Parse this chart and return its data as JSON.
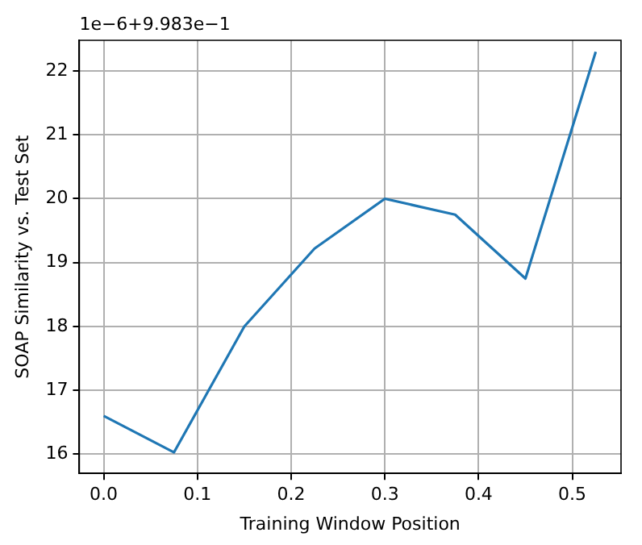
{
  "chart_data": {
    "type": "line",
    "xlabel": "Training Window Position",
    "ylabel": "SOAP Similarity vs. Test Set",
    "annotations": [
      "1e−6+9.983e−1"
    ],
    "x": [
      0,
      0.075,
      0.15,
      0.225,
      0.3,
      0.375,
      0.45,
      0.525
    ],
    "series": [
      {
        "color": "#1f77b4",
        "values": [
          16.6,
          16.03,
          18.0,
          19.22,
          20.0,
          19.75,
          18.75,
          22.3
        ]
      }
    ],
    "xlim": [
      -0.026,
      0.552
    ],
    "xticks": [
      {
        "value": 0,
        "label": "0.0"
      },
      0.1,
      0.2,
      0.3,
      0.4,
      0.5
    ],
    "ylim": [
      15.7,
      22.48
    ],
    "yticks": [
      16,
      17,
      18,
      19,
      20,
      21,
      22
    ],
    "grid": true,
    "legend": false,
    "marker": "none",
    "line_style": "solid"
  }
}
